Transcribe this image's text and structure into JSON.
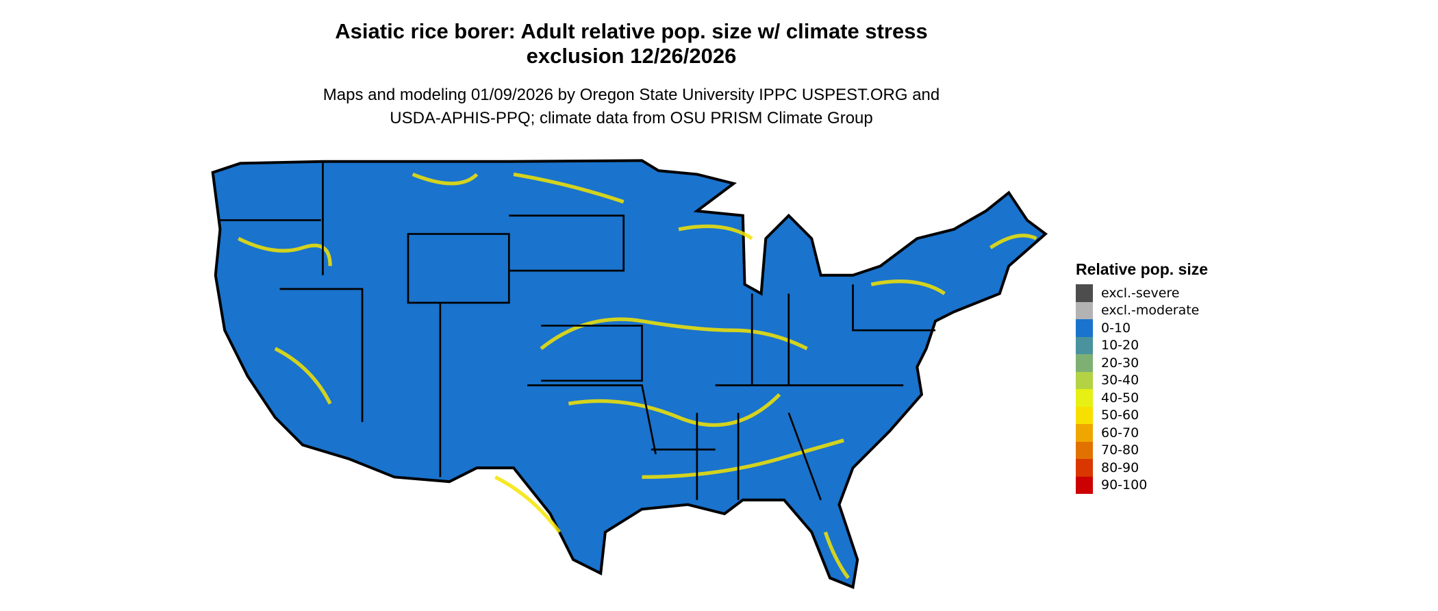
{
  "title_lines": [
    "Asiatic rice borer: Adult relative pop. size w/ climate stress",
    "exclusion 12/26/2026"
  ],
  "subtitle_lines": [
    "Maps and modeling 01/09/2026 by Oregon State University IPPC USPEST.ORG and",
    "USDA-APHIS-PPQ; climate data from OSU PRISM Climate Group"
  ],
  "map": {
    "region": "Contiguous United States",
    "base_color": "#1a73cc",
    "hotspot_color": "#f5e400",
    "border_color": "#000000"
  },
  "legend": {
    "title": "Relative pop. size",
    "items": [
      {
        "label": "excl.-severe",
        "color": "#4d4d4d"
      },
      {
        "label": "excl.-moderate",
        "color": "#b3b3b3"
      },
      {
        "label": "0-10",
        "color": "#1a73cc"
      },
      {
        "label": "10-20",
        "color": "#4a929e"
      },
      {
        "label": "20-30",
        "color": "#7eb074"
      },
      {
        "label": "30-40",
        "color": "#b3d244"
      },
      {
        "label": "40-50",
        "color": "#e6f014"
      },
      {
        "label": "50-60",
        "color": "#f7e000"
      },
      {
        "label": "60-70",
        "color": "#efa700"
      },
      {
        "label": "70-80",
        "color": "#e27200"
      },
      {
        "label": "80-90",
        "color": "#d93600"
      },
      {
        "label": "90-100",
        "color": "#cc0000"
      }
    ]
  }
}
